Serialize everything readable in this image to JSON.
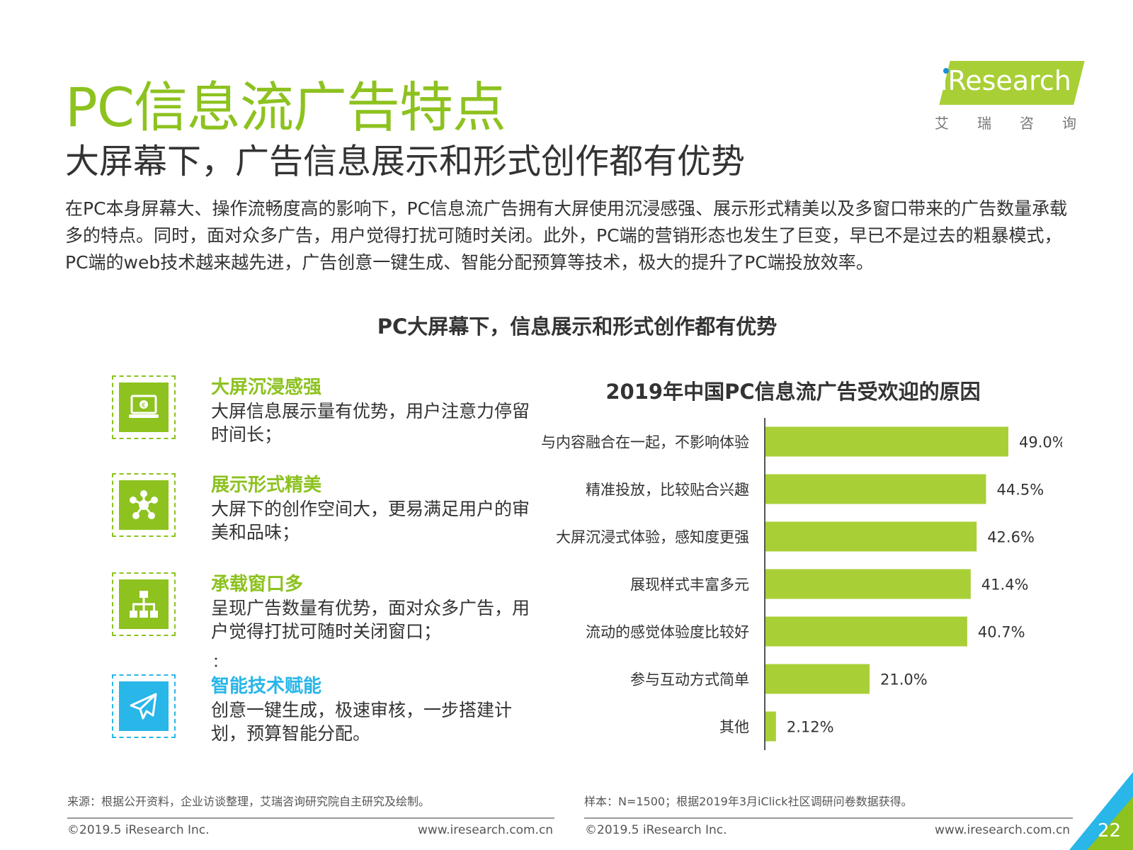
{
  "header": {
    "title": "PC信息流广告特点",
    "subtitle": "大屏幕下，广告信息展示和形式创作都有优势",
    "intro": "在PC本身屏幕大、操作流畅度高的影响下，PC信息流广告拥有大屏使用沉浸感强、展示形式精美以及多窗口带来的广告数量承载多的特点。同时，面对众多广告，用户觉得打扰可随时关闭。此外，PC端的营销形态也发生了巨变，早已不是过去的粗暴模式，PC端的web技术越来越先进，广告创意一键生成、智能分配预算等技术，极大的提升了PC端投放效率。"
  },
  "logo": {
    "text": "iResearch",
    "cn": [
      "艾",
      "瑞",
      "咨",
      "询"
    ]
  },
  "section_title": "PC大屏幕下，信息展示和形式创作都有优势",
  "features": [
    {
      "icon": "laptop-euro-icon",
      "title": "大屏沉浸感强",
      "desc": "大屏信息展示量有优势，用户注意力停留时间长；"
    },
    {
      "icon": "network-nodes-icon",
      "title": "展示形式精美",
      "desc": "大屏下的创作空间大，更易满足用户的审美和品味；"
    },
    {
      "icon": "hierarchy-icon",
      "title": "承载窗口多",
      "desc": "呈现广告数量有优势，面对众多广告，用户觉得打扰可随时关闭窗口；"
    },
    {
      "icon": "paper-plane-icon",
      "title": "智能技术赋能",
      "desc": "创意一键生成，极速审核，一步搭建计划，预算智能分配。"
    }
  ],
  "feature_extra_mark": "：",
  "colors": {
    "green": "#8dc21f",
    "blue": "#29b6e8",
    "bar": "#a9cf37"
  },
  "chart_data": {
    "type": "bar",
    "orientation": "horizontal",
    "title": "2019年中国PC信息流广告受欢迎的原因",
    "categories": [
      "与内容融合在一起，不影响体验",
      "精准投放，比较贴合兴趣",
      "大屏沉浸式体验，感知度更强",
      "展现样式丰富多元",
      "流动的感觉体验度比较好",
      "参与互动方式简单",
      "其他"
    ],
    "values": [
      49.0,
      44.5,
      42.6,
      41.4,
      40.7,
      21.0,
      2.12
    ],
    "value_labels": [
      "49.0%",
      "44.5%",
      "42.6%",
      "41.4%",
      "40.7%",
      "21.0%",
      "2.12%"
    ],
    "xlim": [
      0,
      60
    ],
    "grid": false,
    "legend": "none"
  },
  "footer": {
    "source_left": "来源：根据公开资料，企业访谈整理，艾瑞咨询研究院自主研究及绘制。",
    "source_right": "样本：N=1500；根据2019年3月iClick社区调研问卷数据获得。",
    "copyright": "©2019.5 iResearch Inc.",
    "website": "www.iresearch.com.cn",
    "page": "22"
  }
}
